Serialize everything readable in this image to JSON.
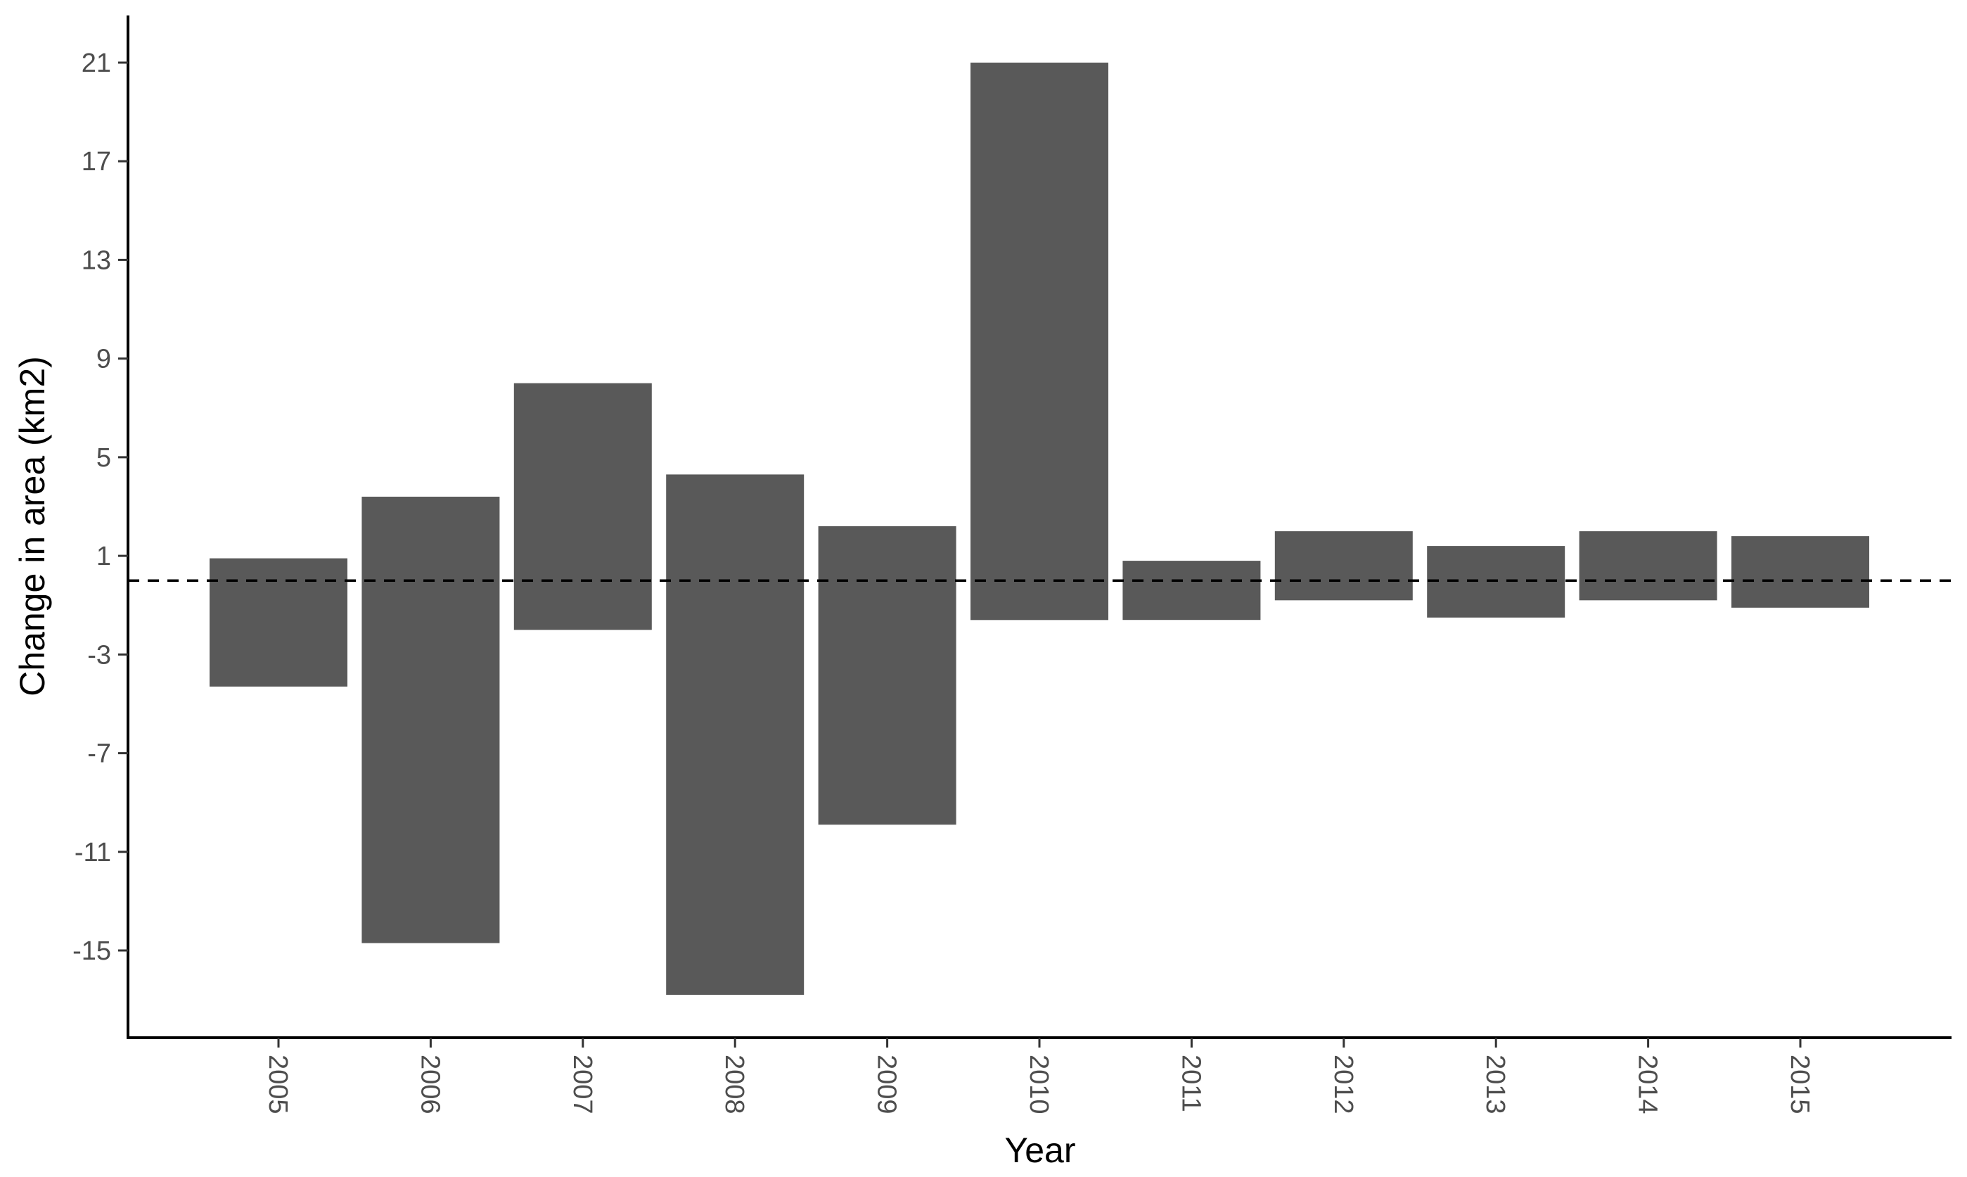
{
  "chart_data": {
    "type": "bar",
    "categories": [
      "2005",
      "2006",
      "2007",
      "2008",
      "2009",
      "2010",
      "2011",
      "2012",
      "2013",
      "2014",
      "2015"
    ],
    "series": [
      {
        "low": [
          -4.3,
          -14.7,
          -2.0,
          -16.8,
          -9.9,
          -1.6,
          -1.6,
          -0.8,
          -1.5,
          -0.8,
          -1.1
        ],
        "high": [
          0.9,
          3.4,
          8.0,
          4.3,
          2.2,
          21.0,
          0.8,
          2.0,
          1.4,
          2.0,
          1.8
        ]
      }
    ],
    "reference_line": {
      "y": 0,
      "style": "dashed",
      "color": "#000000"
    },
    "xlabel": "Year",
    "ylabel": "Change in area (km2)",
    "yticks": [
      -15,
      -11,
      -7,
      -3,
      1,
      5,
      9,
      13,
      17,
      21
    ],
    "ylim": [
      -18.5,
      23.0
    ],
    "grid": false,
    "bar_color": "#595959",
    "x_tick_rotation": "90"
  }
}
